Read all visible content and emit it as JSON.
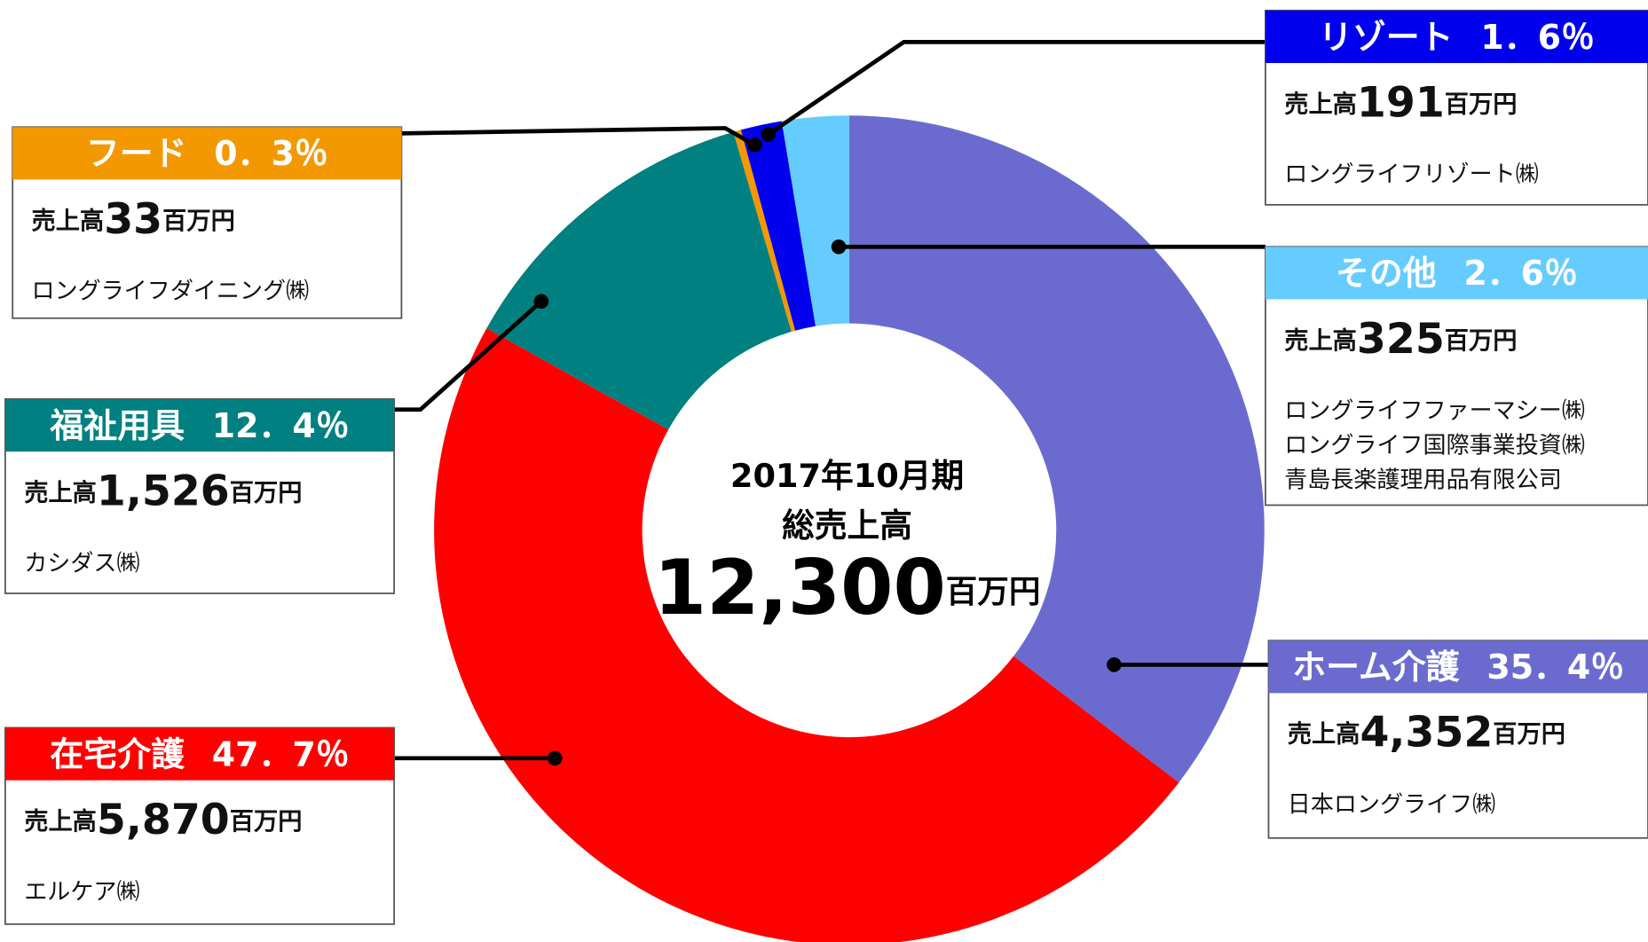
{
  "chart_data": {
    "type": "donut",
    "title_lines": [
      "2017年10月期",
      "総売上高"
    ],
    "total": 12300,
    "total_label": "12,300",
    "unit": "百万円",
    "sales_prefix": "売上高",
    "categories": [
      "ホーム介護",
      "在宅介護",
      "福祉用具",
      "フード",
      "リゾート",
      "その他"
    ],
    "values": [
      35.4,
      47.7,
      12.4,
      0.3,
      1.6,
      2.6
    ],
    "value_labels": [
      "35．4％",
      "47．7％",
      "12．4％",
      "0．3％",
      "1．6％",
      "2．6％"
    ],
    "colors": [
      "#6b6bcf",
      "#ff0000",
      "#008080",
      "#f39800",
      "#0000ee",
      "#66ccff"
    ],
    "sales": [
      4352,
      5870,
      1526,
      33,
      191,
      325
    ],
    "sales_labels": [
      "4,352",
      "5,870",
      "1,526",
      "33",
      "191",
      "325"
    ],
    "companies": [
      [
        "日本ロングライフ㈱"
      ],
      [
        "エルケア㈱"
      ],
      [
        "カシダス㈱"
      ],
      [
        "ロングライフダイニング㈱"
      ],
      [
        "ロングライフリゾート㈱"
      ],
      [
        "ロングライフファーマシー㈱",
        "ロングライフ国際事業投資㈱",
        "青島長楽護理用品有限公司"
      ]
    ]
  }
}
